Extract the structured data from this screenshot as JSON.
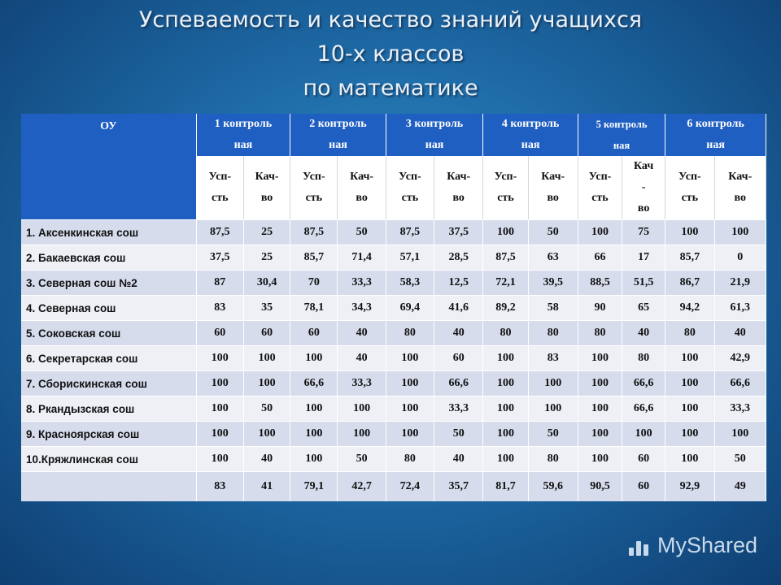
{
  "title": {
    "line1": "Успеваемость и качество знаний учащихся",
    "line2": "10-х классов",
    "line3": "по математике"
  },
  "table": {
    "corner_label": "ОУ",
    "controls": [
      {
        "l1": "1 контроль",
        "l2": "ная"
      },
      {
        "l1": "2 контроль",
        "l2": "ная"
      },
      {
        "l1": "3 контроль",
        "l2": "ная"
      },
      {
        "l1": "4 контроль",
        "l2": "ная"
      },
      {
        "l1": "5 контроль",
        "l2": "ная"
      },
      {
        "l1": "6 контроль",
        "l2": "ная"
      }
    ],
    "subheaders": [
      {
        "a1": "Усп-",
        "a2": "сть",
        "b1": "Кач-",
        "b2": "во"
      },
      {
        "a1": "Усп-",
        "a2": "сть",
        "b1": "Кач-",
        "b2": "во"
      },
      {
        "a1": "Усп-",
        "a2": "сть",
        "b1": "Кач-",
        "b2": "во"
      },
      {
        "a1": "Усп-",
        "a2": "сть",
        "b1": "Кач-",
        "b2": "во"
      },
      {
        "a1": "Усп-",
        "a2": "сть",
        "b1": "Кач",
        "b2": "-",
        "b3": "во"
      },
      {
        "a1": "Усп-",
        "a2": "сть",
        "b1": "Кач-",
        "b2": "во"
      }
    ],
    "rows": [
      {
        "name": "1. Аксенкинская сош",
        "v": [
          "87,5",
          "25",
          "87,5",
          "50",
          "87,5",
          "37,5",
          "100",
          "50",
          "100",
          "75",
          "100",
          "100"
        ]
      },
      {
        "name": "2. Бакаевская сош",
        "v": [
          "37,5",
          "25",
          "85,7",
          "71,4",
          "57,1",
          "28,5",
          "87,5",
          "63",
          "66",
          "17",
          "85,7",
          "0"
        ]
      },
      {
        "name": "3. Северная сош №2",
        "v": [
          "87",
          "30,4",
          "70",
          "33,3",
          "58,3",
          "12,5",
          "72,1",
          "39,5",
          "88,5",
          "51,5",
          "86,7",
          "21,9"
        ]
      },
      {
        "name": "4. Северная  сош",
        "v": [
          "83",
          "35",
          "78,1",
          "34,3",
          "69,4",
          "41,6",
          "89,2",
          "58",
          "90",
          "65",
          "94,2",
          "61,3"
        ]
      },
      {
        "name": "5. Соковская сош",
        "v": [
          "60",
          "60",
          "60",
          "40",
          "80",
          "40",
          "80",
          "80",
          "80",
          "40",
          "80",
          "40"
        ]
      },
      {
        "name": "6. Секретарская сош",
        "v": [
          "100",
          "100",
          "100",
          "40",
          "100",
          "60",
          "100",
          "83",
          "100",
          "80",
          "100",
          "42,9"
        ]
      },
      {
        "name": "7. Сборискинская сош",
        "v": [
          "100",
          "100",
          "66,6",
          "33,3",
          "100",
          "66,6",
          "100",
          "100",
          "100",
          "66,6",
          "100",
          "66,6"
        ]
      },
      {
        "name": "8. Ркандызская сош",
        "v": [
          "100",
          "50",
          "100",
          "100",
          "100",
          "33,3",
          "100",
          "100",
          "100",
          "66,6",
          "100",
          "33,3"
        ]
      },
      {
        "name": "9. Красноярская сош",
        "v": [
          "100",
          "100",
          "100",
          "100",
          "100",
          "50",
          "100",
          "50",
          "100",
          "100",
          "100",
          "100"
        ]
      },
      {
        "name": "10.Кряжлинская сош",
        "v": [
          "100",
          "40",
          "100",
          "50",
          "80",
          "40",
          "100",
          "80",
          "100",
          "60",
          "100",
          "50"
        ]
      },
      {
        "name": "",
        "v": [
          "83",
          "41",
          "79,1",
          "42,7",
          "72,4",
          "35,7",
          "81,7",
          "59,6",
          "90,5",
          "60",
          "92,9",
          "49"
        ]
      }
    ]
  },
  "watermark": {
    "text": "MyShared"
  }
}
